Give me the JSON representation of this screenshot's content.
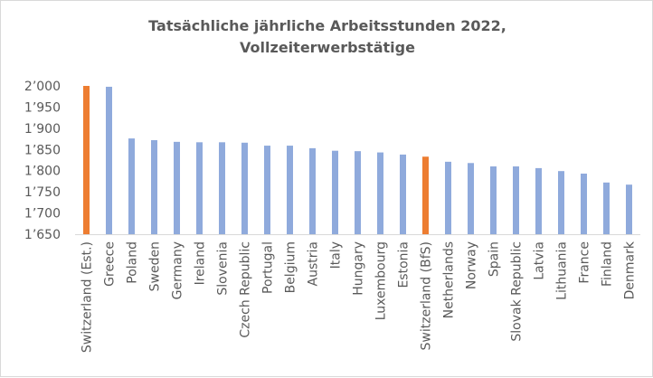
{
  "chart_data": {
    "type": "bar",
    "title_lines": [
      "Tatsächliche jährliche Arbeitsstunden 2022,",
      "Vollzeiterwerbstätige"
    ],
    "categories": [
      "Switzerland (Est.)",
      "Greece",
      "Poland",
      "Sweden",
      "Germany",
      "Ireland",
      "Slovenia",
      "Czech Republic",
      "Portugal",
      "Belgium",
      "Austria",
      "Italy",
      "Hungary",
      "Luxembourg",
      "Estonia",
      "Switzerland (BfS)",
      "Netherlands",
      "Norway",
      "Spain",
      "Slovak Republic",
      "Latvia",
      "Lithuania",
      "France",
      "Finland",
      "Denmark"
    ],
    "values": [
      2000,
      1998,
      1876,
      1872,
      1868,
      1867,
      1867,
      1866,
      1859,
      1859,
      1853,
      1847,
      1846,
      1843,
      1838,
      1833,
      1821,
      1818,
      1810,
      1810,
      1806,
      1799,
      1793,
      1772,
      1767
    ],
    "highlight_categories": [
      "Switzerland (Est.)",
      "Switzerland (BfS)"
    ],
    "ylim": [
      1650,
      2000
    ],
    "yticks": [
      "1’650",
      "1’700",
      "1’750",
      "1’800",
      "1’850",
      "1’900",
      "1’950",
      "2’000"
    ],
    "grid": false,
    "legend": "none",
    "colors": {
      "default_bar": "#8faadc",
      "highlight_bar": "#ed7d31",
      "axis": "#d9d9d9",
      "text": "#595959"
    }
  }
}
